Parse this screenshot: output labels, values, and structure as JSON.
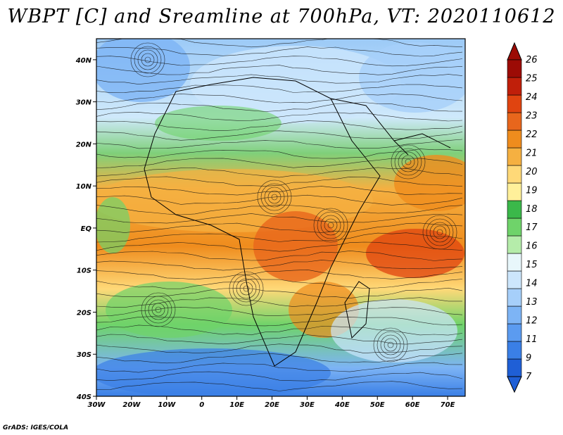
{
  "title": "WBPT [C] and Sreamline at 700hPa, VT: 2020110612",
  "credit": "GrADS: IGES/COLA",
  "axes": {
    "lon_labels": [
      "30W",
      "20W",
      "10W",
      "0",
      "10E",
      "20E",
      "30E",
      "40E",
      "50E",
      "60E",
      "70E"
    ],
    "lat_labels": [
      "40N",
      "30N",
      "20N",
      "10N",
      "EQ",
      "10S",
      "20S",
      "30S",
      "40S"
    ]
  },
  "colorbar": {
    "levels": [
      "7",
      "9",
      "11",
      "12",
      "13",
      "14",
      "15",
      "16",
      "17",
      "18",
      "19",
      "20",
      "21",
      "22",
      "23",
      "24",
      "25",
      "26"
    ],
    "colors": [
      "#1f5fd6",
      "#3a7fe6",
      "#5b9bf0",
      "#7db4f5",
      "#a6cffa",
      "#cce6fc",
      "#e8f7fb",
      "#b5ecaa",
      "#6fd36a",
      "#3bb84a",
      "#fff09a",
      "#ffd978",
      "#f5b041",
      "#ef8c1d",
      "#e8661c",
      "#e04410",
      "#c01f0a",
      "#9c0b05"
    ]
  }
}
